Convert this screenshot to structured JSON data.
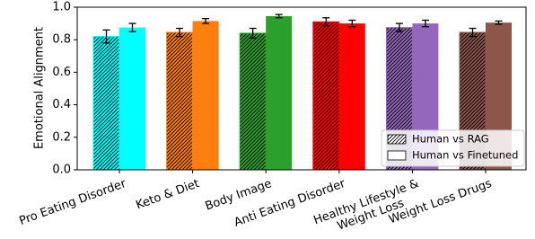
{
  "chart_data": {
    "type": "bar",
    "y_label": "Emotional Alignment",
    "categories": [
      "Pro Eating Disorder",
      "Keto & Diet",
      "Body Image",
      "Anti Eating Disorder",
      "Healthy Lifestyle &\nWeight Loss",
      "Weight Loss Drugs"
    ],
    "colors": [
      "#00ffff",
      "#ff7f0e",
      "#2ca02c",
      "#ff0000",
      "#9467bd",
      "#8c564b"
    ],
    "series": [
      {
        "name": "Human vs RAG",
        "hatch": true,
        "values": [
          0.82,
          0.845,
          0.84,
          0.91,
          0.875,
          0.845
        ],
        "errors": [
          0.04,
          0.025,
          0.03,
          0.025,
          0.025,
          0.025
        ]
      },
      {
        "name": "Human vs Finetuned",
        "hatch": false,
        "values": [
          0.875,
          0.915,
          0.945,
          0.9,
          0.9,
          0.905
        ],
        "errors": [
          0.025,
          0.015,
          0.01,
          0.02,
          0.02,
          0.01
        ]
      }
    ],
    "ylim": [
      0,
      1.0
    ],
    "yticks": [
      {
        "value": 0,
        "label": "0.0"
      },
      {
        "value": 0.2,
        "label": "0.2"
      },
      {
        "value": 0.4,
        "label": "0.4"
      },
      {
        "value": 0.6,
        "label": "0.6"
      },
      {
        "value": 0.8,
        "label": "0.8"
      },
      {
        "value": 1.0,
        "label": "1.0"
      }
    ],
    "legend": "lower right"
  }
}
